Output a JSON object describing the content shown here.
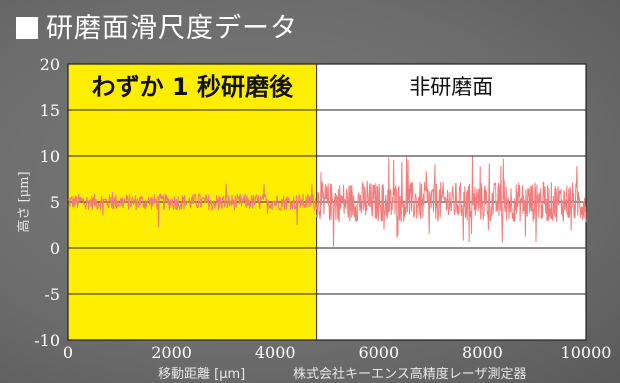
{
  "title": "研磨面滑尺度データ",
  "chart_data": {
    "type": "line",
    "xlim": [
      0,
      10000
    ],
    "ylim": [
      -10,
      20
    ],
    "xticks": [
      "0",
      "2000",
      "4000",
      "6000",
      "8000",
      "10000"
    ],
    "yticks": [
      "20",
      "15",
      "10",
      "5",
      "0",
      "-5",
      "-10"
    ],
    "ylabel": "高さ [μm]",
    "xlabel": "移動距離 [μm]",
    "credit": "株式会社キーエンス高精度レーザ測定器",
    "grid": true,
    "regions": [
      {
        "label": "わずか 1 秒研磨後",
        "x_range": [
          0,
          4800
        ],
        "color": "#ffee00"
      },
      {
        "label": "非研磨面",
        "x_range": [
          4800,
          10000
        ],
        "color": "#ffffff"
      }
    ],
    "series": [
      {
        "segment": "polished",
        "x_range": [
          0,
          4800
        ],
        "mean": 5,
        "amplitude": 0.9,
        "min": 2,
        "max": 7,
        "color": "#f07c7c"
      },
      {
        "segment": "unpolished",
        "x_range": [
          4800,
          10000
        ],
        "mean": 5,
        "amplitude": 2.2,
        "min": -0.5,
        "max": 10,
        "color": "#f07c7c"
      }
    ]
  }
}
